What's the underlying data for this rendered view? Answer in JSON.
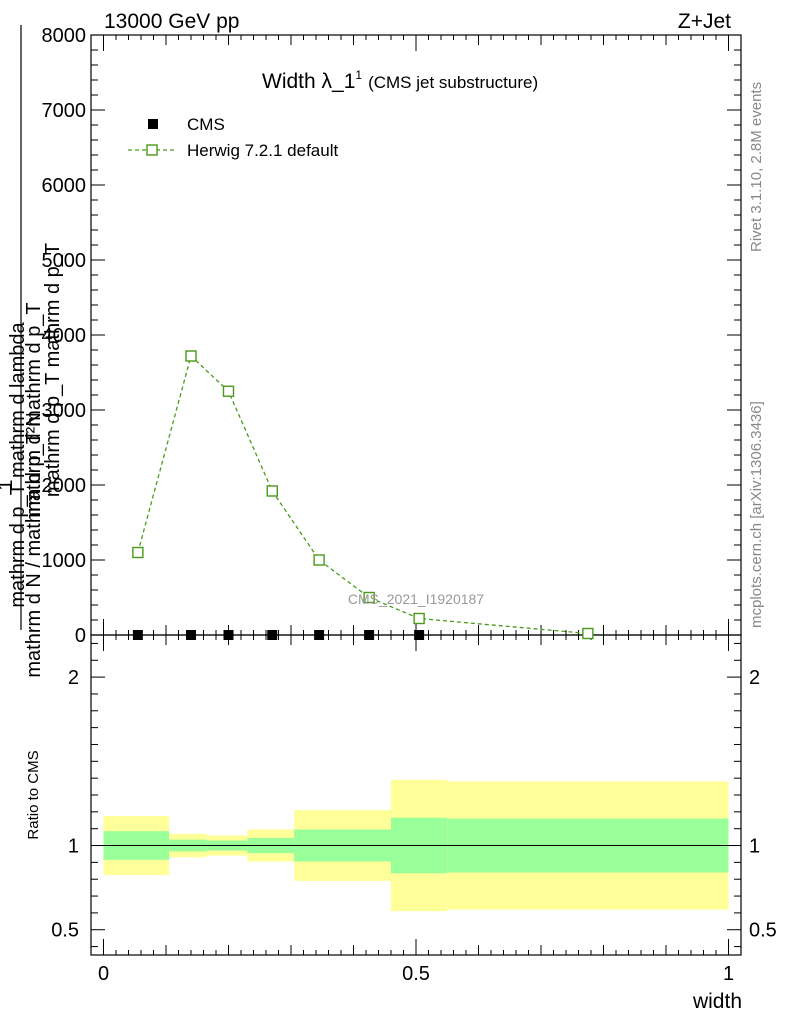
{
  "header": {
    "energy_label": "13000 GeV pp",
    "process_label": "Z+Jet"
  },
  "side_labels": {
    "rivet": "Rivet 3.1.10,  2.8M events",
    "mcplots": "mcplots.cern.ch [arXiv:1306.3436]"
  },
  "watermark": "CMS_2021_I1920187",
  "chart_data": [
    {
      "type": "line",
      "title": "Width λ_1",
      "title_superscript": "1",
      "subtitle": "(CMS jet substructure)",
      "ylabel_fraction": {
        "numerator": "1",
        "denominator": "mathrm d N / mathrm d p_T mathrm d p_T"
      },
      "ylabel_extra": "mathrm d N / mathrm d p_T mathrm d lambda",
      "ylabel_lines": [
        "mathrm d²N",
        "mathrm d p_T mathrm d lambda",
        "mathrm d p_T mathrm d p_T",
        "mathrm d N / mathrm d p_T mathrm d p_T"
      ],
      "xlim": [
        -0.02,
        1.02
      ],
      "ylim": [
        0,
        8000
      ],
      "yticks": [
        0,
        1000,
        2000,
        3000,
        4000,
        5000,
        6000,
        7000,
        8000
      ],
      "ytick_labels": [
        "0",
        "1000",
        "2000",
        "3000",
        "4000",
        "5000",
        "6000",
        "7000",
        "8000"
      ],
      "legend_position": "top-left",
      "series": [
        {
          "name": "CMS",
          "color": "#000000",
          "marker": "filled-square",
          "x": [
            0.055,
            0.14,
            0.2,
            0.27,
            0.345,
            0.425,
            0.505
          ],
          "y": [
            0,
            0,
            0,
            0,
            0,
            0,
            0
          ]
        },
        {
          "name": "Herwig 7.2.1 default",
          "color": "#4a9a1a",
          "marker": "open-square",
          "line": "dashed",
          "x": [
            0.055,
            0.14,
            0.2,
            0.27,
            0.345,
            0.425,
            0.505,
            0.775
          ],
          "y": [
            1100,
            3720,
            3250,
            1920,
            1000,
            500,
            220,
            20
          ]
        }
      ]
    },
    {
      "type": "area",
      "ylabel": "Ratio to CMS",
      "xlabel": "width",
      "xlim": [
        -0.02,
        1.02
      ],
      "ylim": [
        0.35,
        2.25
      ],
      "yticks": [
        0.5,
        1,
        2
      ],
      "ytick_labels": [
        "0.5",
        "1",
        "2"
      ],
      "xticks": [
        0,
        0.5,
        1
      ],
      "xtick_labels": [
        "0",
        "0.5",
        "1"
      ],
      "reference_line": 1,
      "bins": [
        {
          "x0": 0.0,
          "x1": 0.105,
          "inner": [
            0.915,
            1.085
          ],
          "outer": [
            0.825,
            1.175
          ]
        },
        {
          "x0": 0.105,
          "x1": 0.165,
          "inner": [
            0.965,
            1.035
          ],
          "outer": [
            0.93,
            1.07
          ]
        },
        {
          "x0": 0.165,
          "x1": 0.23,
          "inner": [
            0.97,
            1.03
          ],
          "outer": [
            0.94,
            1.06
          ]
        },
        {
          "x0": 0.23,
          "x1": 0.305,
          "inner": [
            0.955,
            1.045
          ],
          "outer": [
            0.905,
            1.095
          ]
        },
        {
          "x0": 0.305,
          "x1": 0.46,
          "inner": [
            0.905,
            1.095
          ],
          "outer": [
            0.79,
            1.21
          ]
        },
        {
          "x0": 0.46,
          "x1": 0.55,
          "inner": [
            0.835,
            1.165
          ],
          "outer": [
            0.61,
            1.39
          ]
        },
        {
          "x0": 0.55,
          "x1": 1.0,
          "inner": [
            0.84,
            1.16
          ],
          "outer": [
            0.62,
            1.38
          ]
        }
      ],
      "inner_color": "#99ff99",
      "outer_color": "#ffff99"
    }
  ]
}
